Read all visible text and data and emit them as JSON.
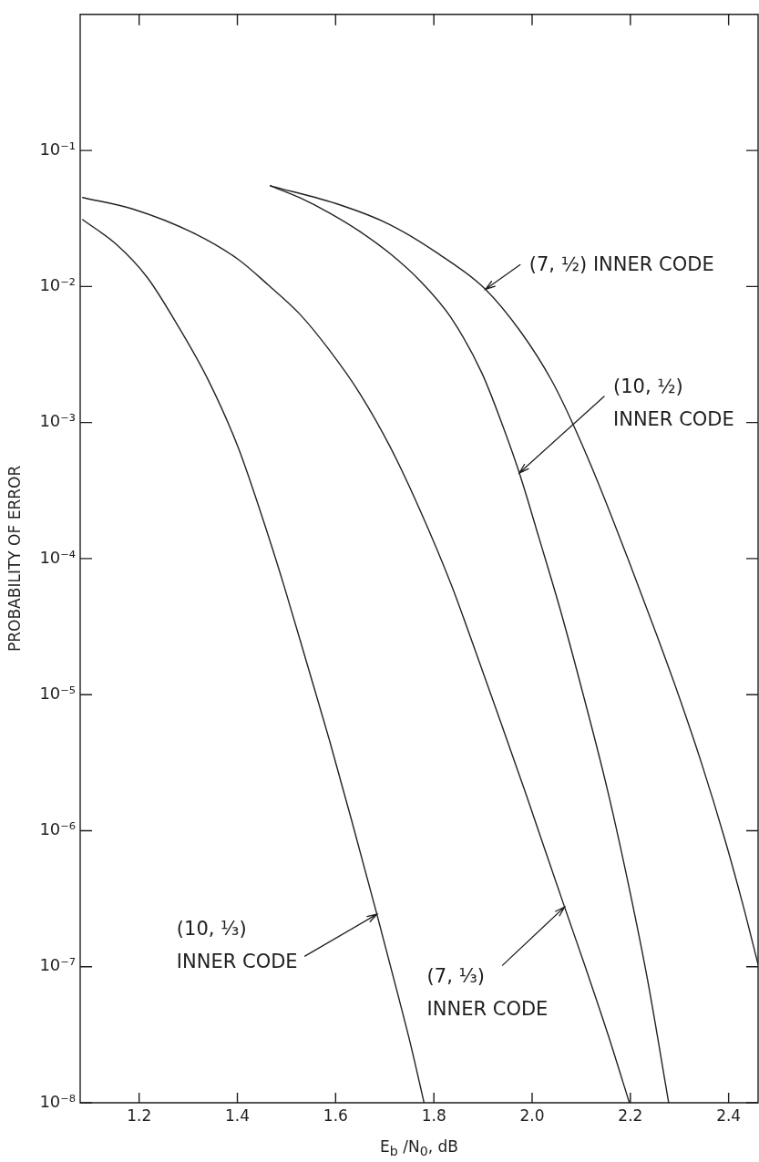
{
  "chart_data": {
    "type": "line",
    "xlabel": "E$_{b}$ /N$_{0}$, dB",
    "ylabel": "PROBABILITY OF ERROR",
    "xlim": [
      1.08,
      2.46
    ],
    "ylim": [
      1e-08,
      1
    ],
    "log": true,
    "marker": "none",
    "line_style": "solid",
    "xticks": [
      1.2,
      1.4,
      1.6,
      1.8,
      {
        "value": 2,
        "label": "2.0"
      },
      2.2,
      2.4
    ],
    "yticks": [
      {
        "value": 0.1,
        "label": "10⁻¹"
      },
      {
        "value": 0.01,
        "label": "10⁻²"
      },
      {
        "value": 0.001,
        "label": "10⁻³"
      },
      {
        "value": 0.0001,
        "label": "10⁻⁴"
      },
      {
        "value": 1e-05,
        "label": "10⁻⁵"
      },
      {
        "value": 1e-06,
        "label": "10⁻⁶"
      },
      {
        "value": 1e-07,
        "label": "10⁻⁷"
      },
      {
        "value": 1e-08,
        "label": "10⁻⁸"
      }
    ],
    "series": [
      {
        "color": "#222222",
        "x": [
          1.085,
          1.155,
          1.217,
          1.278,
          1.341,
          1.402,
          1.463,
          1.495,
          1.543,
          1.588,
          1.634,
          1.684,
          1.725,
          1.753,
          1.78
        ],
        "values": [
          0.031,
          0.0202,
          0.0116,
          0.00521,
          0.00204,
          0.00065,
          0.000147,
          6.3e-05,
          1.63e-05,
          4.55e-06,
          1.14e-06,
          2.43e-07,
          6.6e-08,
          2.65e-08,
          1e-08
        ]
      },
      {
        "color": "#222222",
        "x": [
          1.085,
          1.185,
          1.315,
          1.402,
          1.463,
          1.527,
          1.588,
          1.649,
          1.712,
          1.773,
          1.835,
          1.885,
          1.935,
          1.987,
          2.027,
          2.066,
          2.109,
          2.155,
          2.198
        ],
        "values": [
          0.0451,
          0.0373,
          0.0243,
          0.0158,
          0.01025,
          0.00627,
          0.00338,
          0.00164,
          0.000652,
          0.000222,
          6.48e-05,
          2.07e-05,
          6.44e-06,
          1.88e-06,
          7.08e-07,
          2.75e-07,
          9.8e-08,
          3.13e-08,
          1e-08
        ]
      },
      {
        "color": "#222222",
        "x": [
          1.467,
          1.527,
          1.588,
          1.649,
          1.712,
          1.773,
          1.835,
          1.898,
          1.94,
          1.974,
          2.014,
          2.061,
          2.107,
          2.154,
          2.198,
          2.235,
          2.278
        ],
        "values": [
          0.055,
          0.0449,
          0.0346,
          0.0254,
          0.0173,
          0.0109,
          0.00589,
          0.0023,
          0.00095,
          0.000426,
          0.000142,
          3.78e-05,
          9.1e-06,
          1.95e-06,
          3.73e-07,
          8e-08,
          1e-08
        ]
      },
      {
        "color": "#222222",
        "x": [
          1.467,
          1.61,
          1.708,
          1.807,
          1.905,
          1.977,
          2.039,
          2.079,
          2.131,
          2.194,
          2.254,
          2.3,
          2.346,
          2.391,
          2.428,
          2.46
        ],
        "values": [
          0.055,
          0.0397,
          0.0288,
          0.0176,
          0.00953,
          0.00463,
          0.00206,
          0.00105,
          0.000387,
          0.000102,
          2.72e-05,
          9.46e-06,
          3.04e-06,
          8.97e-07,
          2.96e-07,
          1.04e-07
        ]
      }
    ],
    "annotations": [
      {
        "text": "(7, ½) INNER CODE",
        "x": 1.905,
        "y": 0.00953
      },
      {
        "text": "(10, ½) INNER CODE",
        "x": 1.974,
        "y": 0.000426
      },
      {
        "text": "(10, ⅓) INNER CODE",
        "x": 1.684,
        "y": 2.43e-07
      },
      {
        "text": "(7, ⅓) INNER CODE",
        "x": 2.066,
        "y": 2.75e-07
      }
    ]
  }
}
